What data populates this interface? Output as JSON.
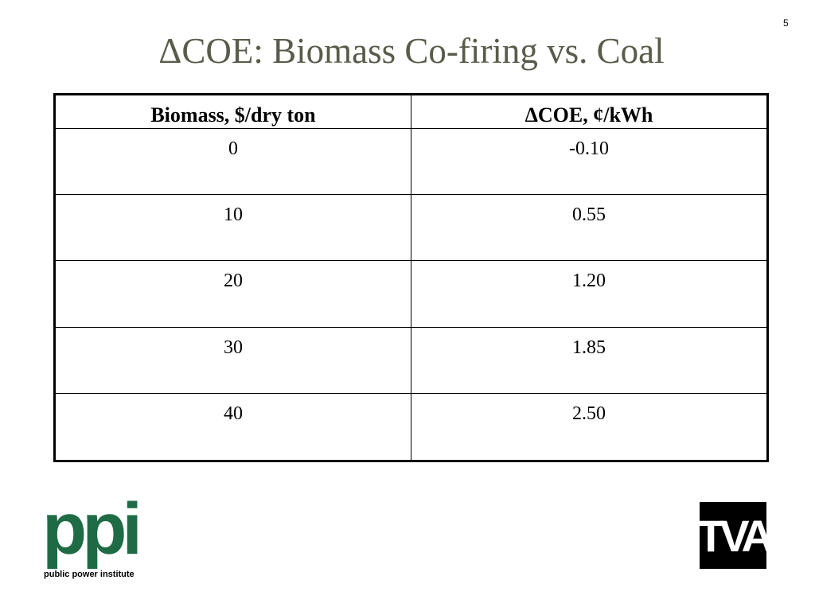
{
  "slide_number": "5",
  "title": "ΔCOE: Biomass Co-firing vs. Coal",
  "table": {
    "header": [
      "Biomass, $/dry ton",
      "ΔCOE, ¢/kWh"
    ],
    "rows": [
      [
        "0",
        "-0.10"
      ],
      [
        "10",
        "0.55"
      ],
      [
        "20",
        "1.20"
      ],
      [
        "30",
        "1.85"
      ],
      [
        "40",
        "2.50"
      ]
    ]
  },
  "logos": {
    "left": {
      "mark": "ppi",
      "caption": "public power institute"
    },
    "right": {
      "mark": "TVA"
    }
  }
}
